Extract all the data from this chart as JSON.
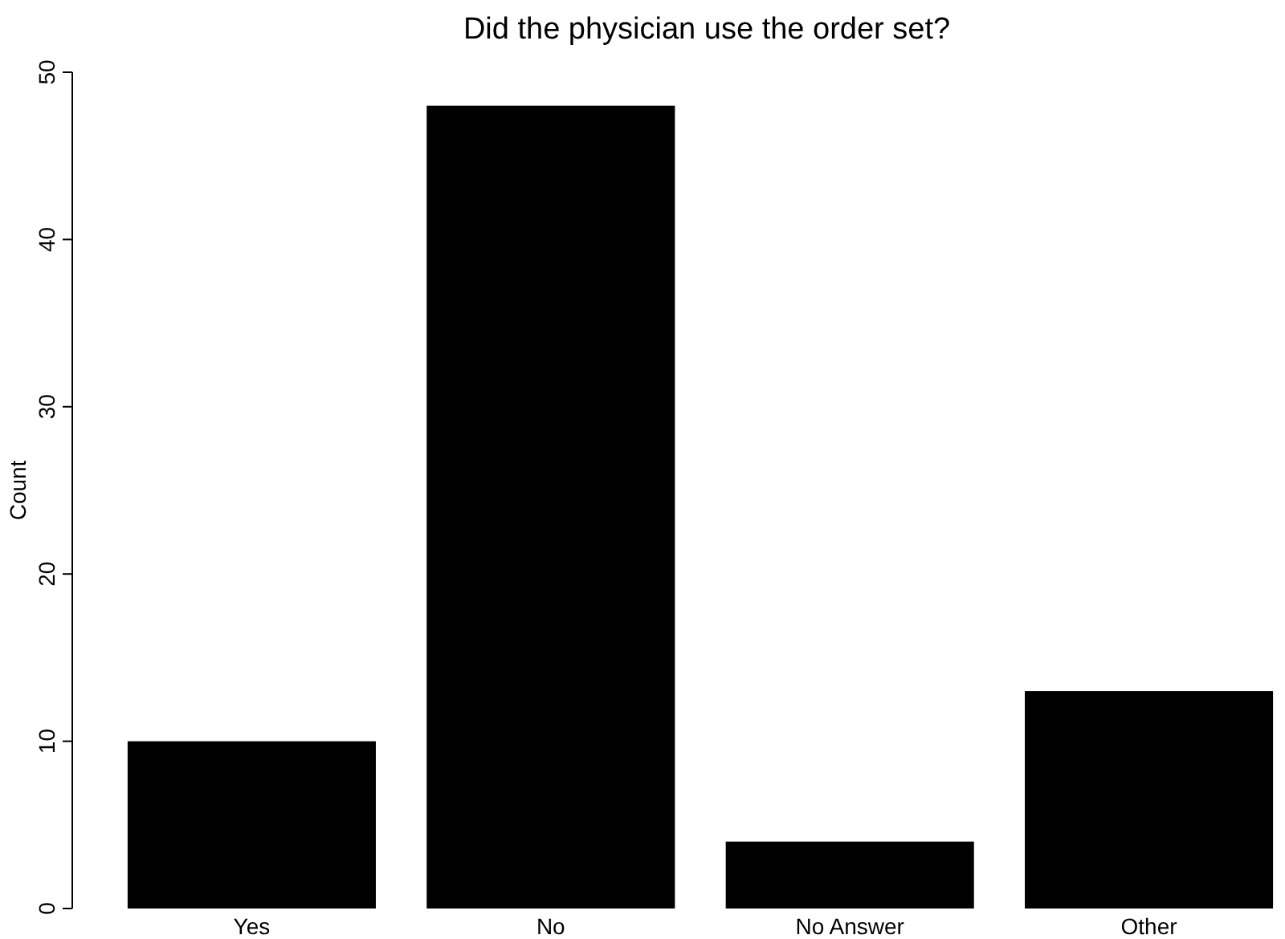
{
  "chart_data": {
    "type": "bar",
    "title": "Did the physician use the order set?",
    "ylabel": "Count",
    "categories": [
      "Yes",
      "No",
      "No Answer",
      "Other"
    ],
    "values": [
      10,
      48,
      4,
      13
    ],
    "color": "#000000",
    "ylim": [
      0,
      50
    ],
    "yticks": [
      0,
      10,
      20,
      30,
      40,
      50
    ],
    "grid": false
  }
}
